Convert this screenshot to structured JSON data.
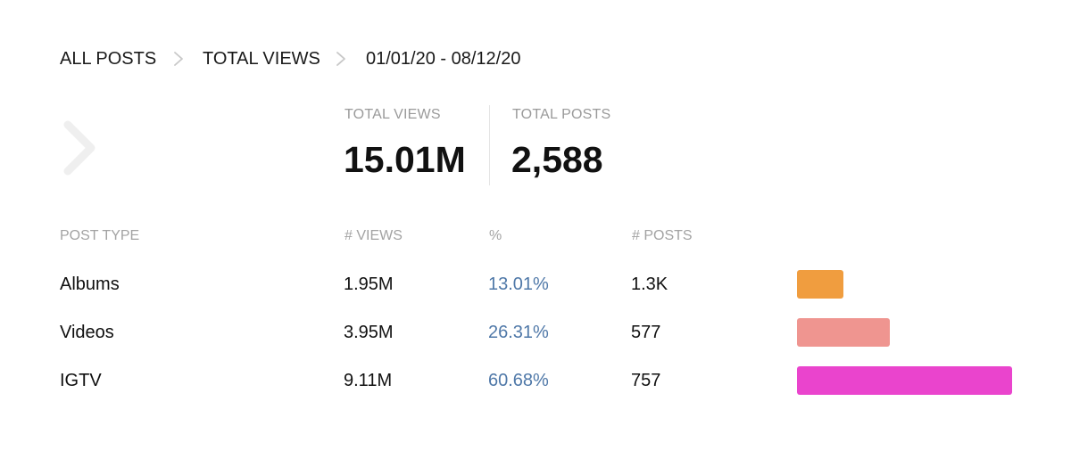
{
  "breadcrumb": {
    "level1": "ALL POSTS",
    "level2": "TOTAL VIEWS",
    "date_range": "01/01/20 - 08/12/20"
  },
  "summary": {
    "views_label": "TOTAL VIEWS",
    "views_value": "15.01M",
    "posts_label": "TOTAL POSTS",
    "posts_value": "2,588"
  },
  "table": {
    "headers": {
      "type": "POST TYPE",
      "views": "# VIEWS",
      "pct": "%",
      "posts": "# POSTS"
    },
    "rows": [
      {
        "name": "Albums",
        "views": "1.95M",
        "pct": "13.01%",
        "posts": "1.3K",
        "share": 13.01,
        "color": "#F09D3F"
      },
      {
        "name": "Videos",
        "views": "3.95M",
        "pct": "26.31%",
        "posts": "577",
        "share": 26.31,
        "color": "#EF9590"
      },
      {
        "name": "IGTV",
        "views": "9.11M",
        "pct": "60.68%",
        "posts": "757",
        "share": 60.68,
        "color": "#EA44CD"
      }
    ]
  },
  "colors": {
    "percent_text": "#4F78A8",
    "muted_label": "#9A9A9A",
    "chevron": "#C8C8C8"
  },
  "icons": {
    "breadcrumb_separator": "chevron-right-icon",
    "back_arrow": "chevron-right-large-icon"
  }
}
